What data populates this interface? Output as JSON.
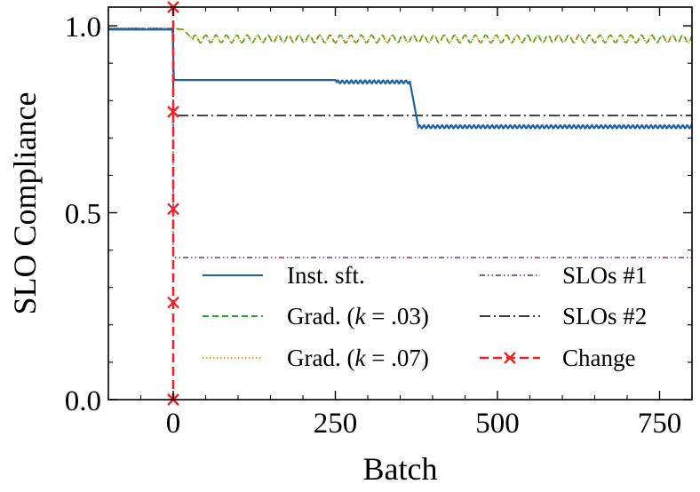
{
  "chart_data": {
    "type": "line",
    "title": "",
    "xlabel": "Batch",
    "ylabel": "SLO Compliance",
    "xlim": [
      -100,
      800
    ],
    "ylim": [
      0,
      1.05
    ],
    "x_ticks": [
      0,
      250,
      500,
      750
    ],
    "x_tick_labels": [
      "0",
      "250",
      "500",
      "750"
    ],
    "y_ticks": [
      0.0,
      0.5,
      1.0
    ],
    "y_tick_labels": [
      "0.0",
      "0.5",
      "1.0"
    ],
    "legend_position": "lower-right",
    "change_point": 0,
    "series": [
      {
        "name": "Inst. sft.",
        "color": "#1f5fa8",
        "style": "solid",
        "points": [
          [
            -100,
            0.99
          ],
          [
            -1,
            0.99
          ],
          [
            1,
            0.855
          ],
          [
            250,
            0.855
          ],
          [
            252,
            0.85
          ],
          [
            365,
            0.85
          ],
          [
            378,
            0.73
          ],
          [
            800,
            0.73
          ]
        ],
        "oscillation": {
          "from": 252,
          "to": 365,
          "amplitude": 0.004,
          "period": 7
        },
        "oscillation_2": {
          "from": 378,
          "to": 800,
          "amplitude": 0.004,
          "period": 7
        }
      },
      {
        "name": "Grad. (k = .03)",
        "color": "#2ca02c",
        "style": "dashed",
        "points": [
          [
            -100,
            0.993
          ],
          [
            0,
            0.993
          ],
          [
            15,
            0.99
          ],
          [
            30,
            0.965
          ],
          [
            800,
            0.965
          ]
        ],
        "oscillation": {
          "from": 30,
          "to": 800,
          "amplitude": 0.01,
          "period": 16
        }
      },
      {
        "name": "Grad. (k = .07)",
        "color": "#e8a317",
        "style": "dotted",
        "points": [
          [
            -100,
            0.993
          ],
          [
            0,
            0.993
          ],
          [
            15,
            0.99
          ],
          [
            30,
            0.965
          ],
          [
            800,
            0.965
          ]
        ],
        "oscillation": {
          "from": 30,
          "to": 800,
          "amplitude": 0.01,
          "period": 16
        }
      },
      {
        "name": "SLOs #1",
        "color": "#8e5a9e",
        "style": "dash-dot-dot",
        "points": [
          [
            -100,
            0.993
          ],
          [
            0,
            0.993
          ],
          [
            0,
            0.38
          ],
          [
            800,
            0.38
          ]
        ]
      },
      {
        "name": "SLOs #2",
        "color": "#3a3a3a",
        "style": "dash-dot",
        "points": [
          [
            -100,
            0.993
          ],
          [
            0,
            0.993
          ],
          [
            0,
            0.76
          ],
          [
            800,
            0.76
          ]
        ]
      },
      {
        "name": "Change",
        "color": "#ee2222",
        "style": "dashed-marker",
        "x": 0,
        "marker_y": [
          0.0,
          0.26,
          0.51,
          0.77,
          1.05
        ]
      }
    ],
    "legend": {
      "left": [
        {
          "label_before": "Inst. sft.",
          "italic": "",
          "label_after": ""
        },
        {
          "label_before": "Grad. (",
          "italic": "k",
          "label_after": " = .03)"
        },
        {
          "label_before": "Grad. (",
          "italic": "k",
          "label_after": " = .07)"
        }
      ],
      "right": [
        {
          "label_before": "SLOs #1",
          "italic": "",
          "label_after": ""
        },
        {
          "label_before": "SLOs #2",
          "italic": "",
          "label_after": ""
        },
        {
          "label_before": "Change",
          "italic": "",
          "label_after": ""
        }
      ]
    }
  }
}
